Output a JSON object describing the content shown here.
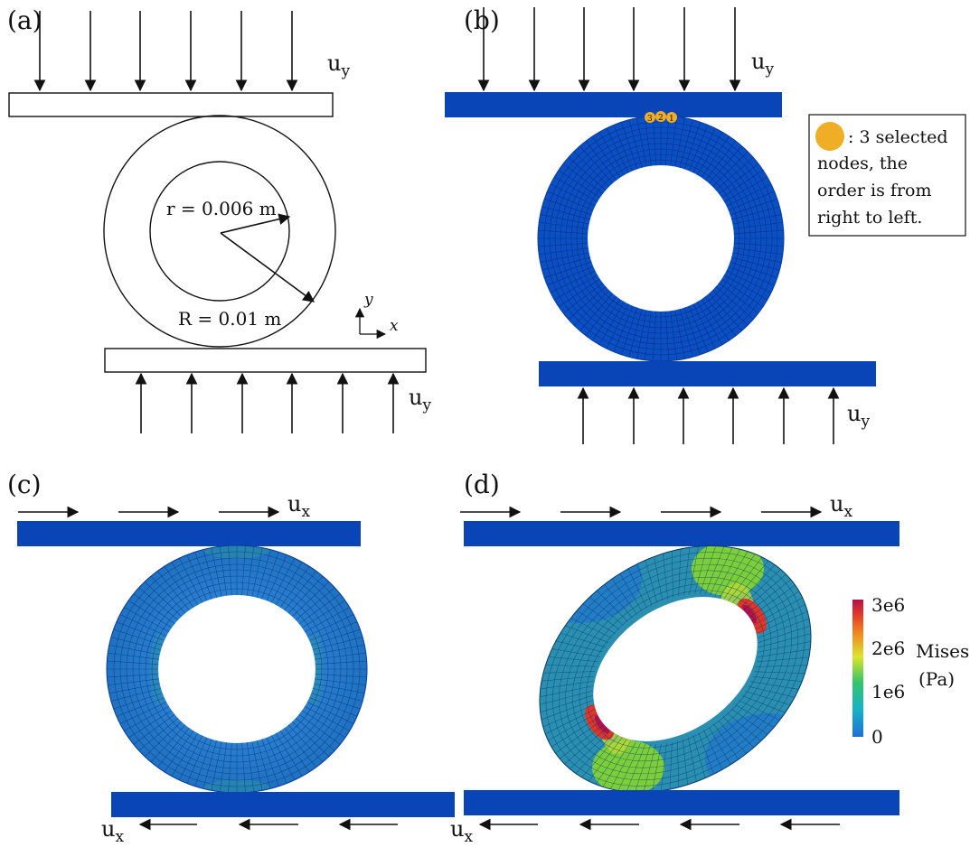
{
  "panels": {
    "a": {
      "label": "(a)",
      "load_top": "u",
      "load_top_sub": "y",
      "load_bottom": "u",
      "load_bottom_sub": "y",
      "inner_radius_label": "r = 0.006 m",
      "outer_radius_label": "R = 0.01 m",
      "axis_y": "y",
      "axis_x": "x"
    },
    "b": {
      "label": "(b)",
      "load_top": "u",
      "load_top_sub": "y",
      "load_bottom": "u",
      "load_bottom_sub": "y",
      "node_labels": [
        "3",
        "2",
        "1"
      ],
      "legend_lines": [
        ": 3 selected",
        "nodes, the",
        "order is from",
        "right to left."
      ]
    },
    "c": {
      "label": "(c)",
      "load_top": "u",
      "load_top_sub": "x",
      "load_bottom": "u",
      "load_bottom_sub": "x"
    },
    "d": {
      "label": "(d)",
      "load_top": "u",
      "load_top_sub": "x",
      "load_bottom": "u",
      "load_bottom_sub": "x",
      "colorbar": {
        "title": "Mises",
        "unit": "(Pa)",
        "ticks": [
          "3e6",
          "2e6",
          "1e6",
          "0"
        ]
      }
    }
  },
  "colors": {
    "plate": "#0a45b8",
    "mesh": "#0b4fc4",
    "node": "#efae26",
    "stress_low": "#1f6fd6",
    "stress_mid": "#35c46a",
    "stress_high": "#c0143a"
  }
}
